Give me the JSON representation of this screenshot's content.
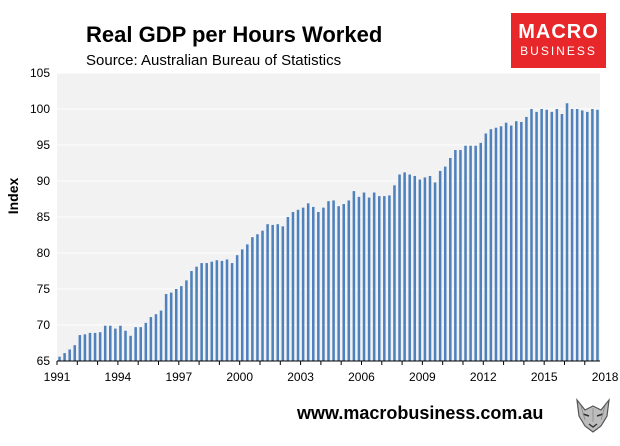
{
  "header": {
    "title": "Real GDP per Hours Worked",
    "subtitle": "Source: Australian Bureau of Statistics"
  },
  "logo": {
    "line1": "MACRO",
    "line2": "BUSINESS",
    "color": "#e8272a"
  },
  "footer": {
    "website": "www.macrobusiness.com.au",
    "mascot": "wolf-icon"
  },
  "colors": {
    "bar": "#4f81bd",
    "plot_bg": "#f2f2f2",
    "grid": "#ffffff"
  },
  "chart_data": {
    "type": "bar",
    "title": "Real GDP per Hours Worked",
    "xlabel": "",
    "ylabel": "Index",
    "ylim": [
      65,
      105
    ],
    "yticks": [
      65,
      70,
      75,
      80,
      85,
      90,
      95,
      100,
      105
    ],
    "xtick_labels": [
      "1991",
      "1994",
      "1997",
      "2000",
      "2003",
      "2006",
      "2009",
      "2012",
      "2015",
      "2018"
    ],
    "x_start": "1991-Q1",
    "frequency": "quarterly",
    "grid": true,
    "values": [
      65.6,
      66.1,
      66.6,
      67.2,
      68.6,
      68.7,
      68.9,
      68.9,
      69.0,
      69.9,
      69.9,
      69.5,
      69.9,
      69.2,
      68.5,
      69.7,
      69.7,
      70.3,
      71.1,
      71.5,
      72.0,
      74.3,
      74.5,
      75.0,
      75.4,
      76.2,
      77.5,
      78.1,
      78.6,
      78.6,
      78.8,
      79.0,
      78.9,
      79.1,
      78.6,
      79.7,
      80.5,
      81.2,
      82.2,
      82.6,
      83.1,
      84.0,
      83.9,
      84.0,
      83.7,
      85.0,
      85.7,
      86.0,
      86.3,
      86.9,
      86.4,
      85.7,
      86.3,
      87.2,
      87.3,
      86.5,
      86.8,
      87.3,
      88.6,
      87.8,
      88.4,
      87.7,
      88.4,
      87.9,
      87.9,
      88.0,
      89.4,
      90.9,
      91.2,
      90.9,
      90.7,
      90.2,
      90.5,
      90.7,
      89.8,
      91.4,
      92.0,
      93.2,
      94.3,
      94.3,
      94.9,
      94.9,
      94.9,
      95.3,
      96.6,
      97.2,
      97.4,
      97.6,
      98.1,
      97.7,
      98.3,
      98.2,
      98.9,
      100.0,
      99.6,
      100.0,
      99.9,
      99.6,
      100.0,
      99.3,
      100.8,
      100.0,
      100.0,
      99.8,
      99.6,
      100.0,
      99.9
    ]
  }
}
